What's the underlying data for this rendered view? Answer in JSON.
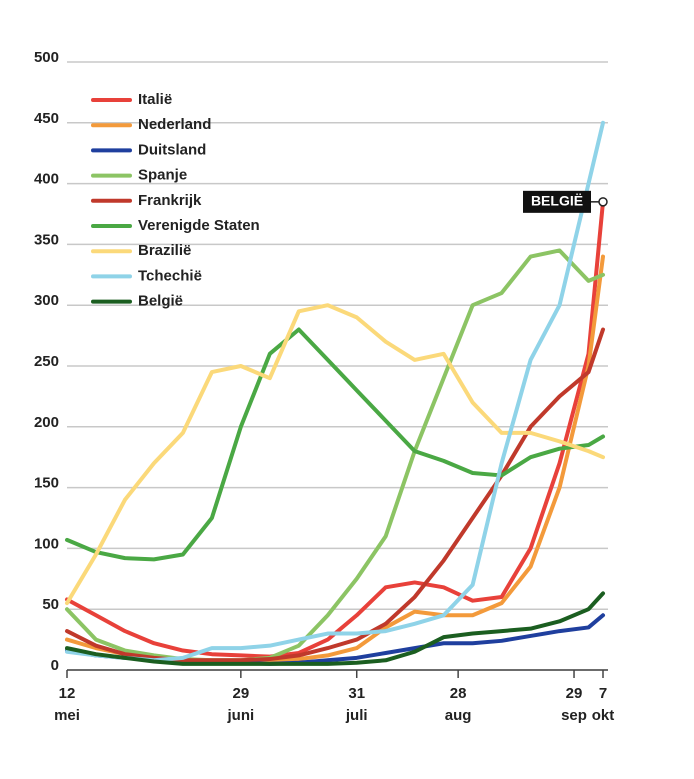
{
  "chart_data": {
    "type": "line",
    "x": [
      0,
      8,
      16,
      24,
      32,
      40,
      48,
      56,
      64,
      72,
      80,
      88,
      96,
      104,
      112,
      120,
      128,
      136,
      144,
      148
    ],
    "xlim": [
      0,
      148
    ],
    "xticks": [
      {
        "value": 0,
        "label": "12",
        "sublabel": "mei"
      },
      {
        "value": 48,
        "label": "29",
        "sublabel": "juni"
      },
      {
        "value": 80,
        "label": "31",
        "sublabel": "juli"
      },
      {
        "value": 108,
        "label": "28",
        "sublabel": "aug"
      },
      {
        "value": 140,
        "label": "29",
        "sublabel": "sep"
      },
      {
        "value": 148,
        "label": "7",
        "sublabel": "okt"
      }
    ],
    "ylim": [
      0,
      500
    ],
    "yticks": [
      0,
      50,
      100,
      150,
      200,
      250,
      300,
      350,
      400,
      450,
      500
    ],
    "grid": true,
    "legend": "upper-left",
    "series": [
      {
        "name": "Italië",
        "color": "#e8413a",
        "values": [
          58,
          45,
          32,
          22,
          16,
          13,
          12,
          11,
          14,
          25,
          45,
          68,
          72,
          68,
          57,
          60,
          100,
          170,
          260,
          385
        ]
      },
      {
        "name": "Nederland",
        "color": "#f39a3b",
        "values": [
          25,
          18,
          13,
          10,
          8,
          8,
          8,
          8,
          9,
          12,
          18,
          35,
          48,
          45,
          45,
          55,
          85,
          150,
          250,
          340
        ]
      },
      {
        "name": "Duitsland",
        "color": "#1f3f9e",
        "values": [
          16,
          12,
          10,
          9,
          8,
          7,
          6,
          5,
          6,
          8,
          10,
          14,
          18,
          22,
          22,
          24,
          28,
          32,
          35,
          45
        ]
      },
      {
        "name": "Spanje",
        "color": "#8cc464",
        "values": [
          50,
          25,
          16,
          12,
          9,
          8,
          8,
          10,
          20,
          45,
          75,
          110,
          180,
          240,
          300,
          310,
          340,
          345,
          320,
          325
        ]
      },
      {
        "name": "Frankrijk",
        "color": "#c0392b",
        "values": [
          32,
          20,
          13,
          10,
          8,
          8,
          8,
          9,
          12,
          18,
          25,
          38,
          60,
          90,
          125,
          160,
          200,
          225,
          245,
          280
        ]
      },
      {
        "name": "Verenigde Staten",
        "color": "#4aa844",
        "values": [
          107,
          97,
          92,
          91,
          95,
          125,
          200,
          260,
          280,
          255,
          230,
          205,
          180,
          172,
          162,
          160,
          175,
          182,
          185,
          192
        ]
      },
      {
        "name": "Brazilië",
        "color": "#fbd97a",
        "values": [
          55,
          95,
          140,
          170,
          195,
          245,
          250,
          240,
          295,
          300,
          290,
          270,
          255,
          260,
          220,
          195,
          195,
          188,
          180,
          175
        ]
      },
      {
        "name": "Tchechië",
        "color": "#8fd3e8",
        "values": [
          15,
          12,
          10,
          8,
          10,
          18,
          18,
          20,
          25,
          30,
          30,
          32,
          38,
          45,
          70,
          170,
          255,
          300,
          400,
          450
        ]
      },
      {
        "name": "België",
        "color": "#1b5e20",
        "values": [
          18,
          13,
          10,
          7,
          5,
          5,
          5,
          5,
          5,
          5,
          6,
          8,
          15,
          27,
          30,
          32,
          34,
          40,
          50,
          63
        ]
      }
    ],
    "annotation": {
      "text": "BELGIË",
      "x": 148,
      "y": 385
    }
  }
}
